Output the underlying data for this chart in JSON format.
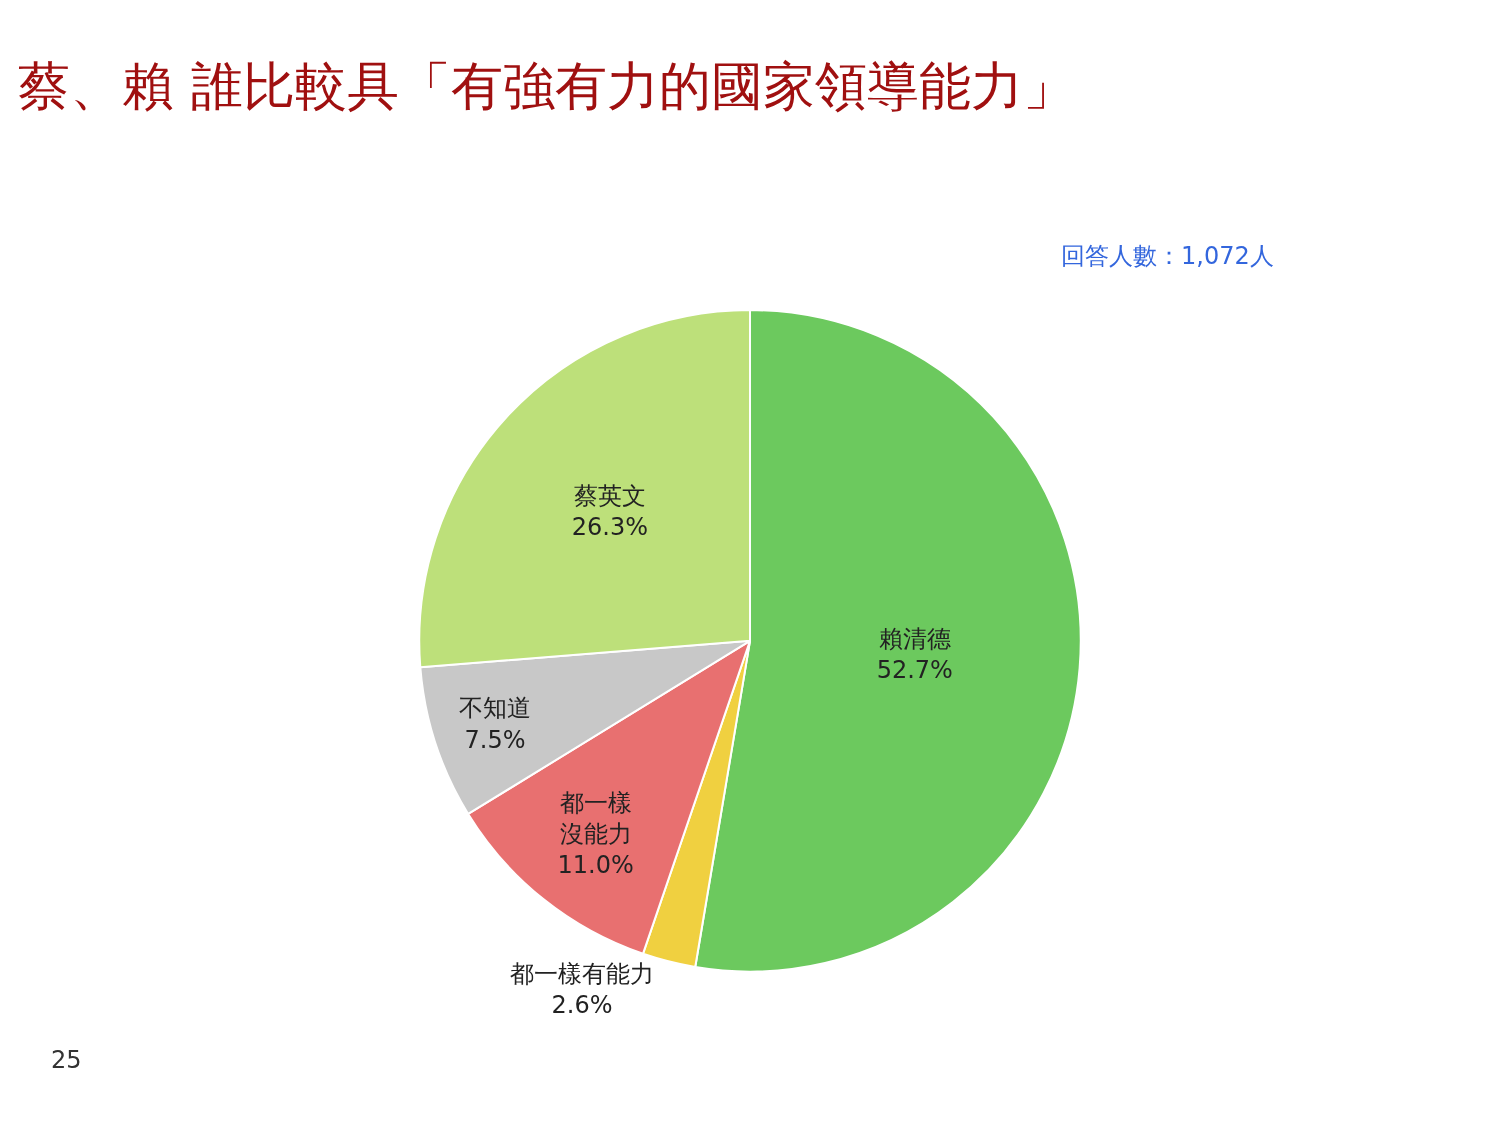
{
  "chart_data": {
    "type": "pie",
    "title": "蔡、賴 誰比較具「有強有力的國家領導能力」",
    "categories": [
      "賴清德",
      "都一樣有能力",
      "都一樣沒能力",
      "不知道",
      "蔡英文"
    ],
    "values": [
      52.7,
      2.6,
      11.0,
      7.5,
      26.3
    ],
    "value_labels": [
      "52.7%",
      "2.6%",
      "11.0%",
      "7.5%",
      "26.3%"
    ],
    "colors": [
      "#6cc95e",
      "#f0d040",
      "#e87070",
      "#c8c8c8",
      "#bde07a"
    ],
    "annotations": [
      "回答人數：1,072人",
      "25"
    ],
    "legend": false
  }
}
